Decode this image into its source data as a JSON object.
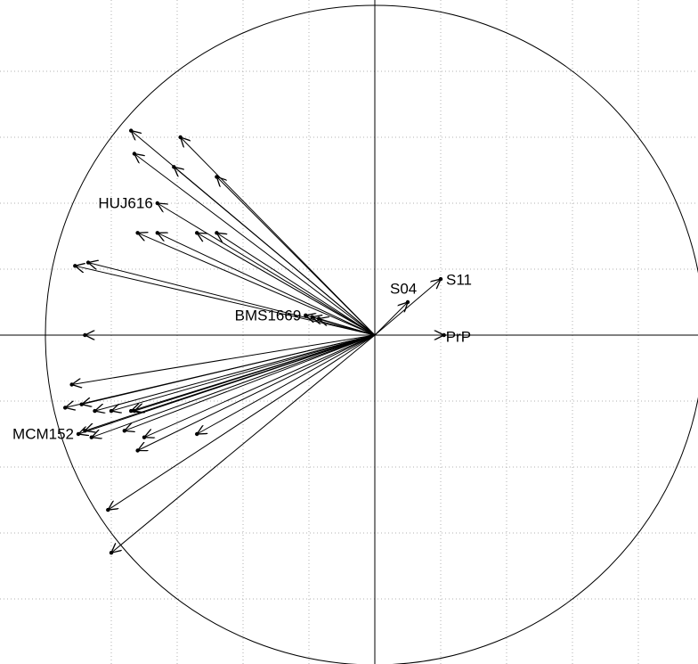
{
  "chart_data": {
    "type": "scatter",
    "subtype": "correlation-circle",
    "title": "",
    "xlabel": "",
    "ylabel": "",
    "xlim": [
      -1,
      1
    ],
    "ylim": [
      -1,
      1
    ],
    "grid": true,
    "grid_step": 0.2,
    "circle_radius": 1.0,
    "axes_through_origin": true,
    "colors": {
      "line": "#000000",
      "grid": "#b0b0b0",
      "background": "#ffffff"
    },
    "vectors": [
      {
        "x": -0.74,
        "y": 0.62
      },
      {
        "x": -0.59,
        "y": 0.6
      },
      {
        "x": -0.73,
        "y": 0.55
      },
      {
        "x": -0.61,
        "y": 0.51
      },
      {
        "x": -0.48,
        "y": 0.48
      },
      {
        "x": -0.66,
        "y": 0.4,
        "label": "HUJ616"
      },
      {
        "x": -0.72,
        "y": 0.31
      },
      {
        "x": -0.66,
        "y": 0.31
      },
      {
        "x": -0.54,
        "y": 0.31
      },
      {
        "x": -0.48,
        "y": 0.31
      },
      {
        "x": -0.91,
        "y": 0.21
      },
      {
        "x": -0.87,
        "y": 0.22
      },
      {
        "x": -0.21,
        "y": 0.06,
        "label": "BMS1669"
      },
      {
        "x": -0.19,
        "y": 0.055
      },
      {
        "x": -0.17,
        "y": 0.05
      },
      {
        "x": -0.88,
        "y": 0.0
      },
      {
        "x": -0.92,
        "y": -0.15
      },
      {
        "x": -0.94,
        "y": -0.22
      },
      {
        "x": -0.89,
        "y": -0.21
      },
      {
        "x": -0.85,
        "y": -0.23
      },
      {
        "x": -0.8,
        "y": -0.23
      },
      {
        "x": -0.73,
        "y": -0.23
      },
      {
        "x": -0.74,
        "y": -0.23
      },
      {
        "x": -0.88,
        "y": -0.29
      },
      {
        "x": -0.9,
        "y": -0.3,
        "label": "MCM152"
      },
      {
        "x": -0.86,
        "y": -0.31
      },
      {
        "x": -0.76,
        "y": -0.29
      },
      {
        "x": -0.7,
        "y": -0.31
      },
      {
        "x": -0.54,
        "y": -0.3
      },
      {
        "x": -0.72,
        "y": -0.35
      },
      {
        "x": -0.81,
        "y": -0.53
      },
      {
        "x": -0.8,
        "y": -0.66
      },
      {
        "x": 0.21,
        "y": 0.0,
        "label": "PrP"
      },
      {
        "x": 0.1,
        "y": 0.1,
        "label": "S04"
      },
      {
        "x": 0.2,
        "y": 0.17,
        "label": "S11"
      }
    ]
  }
}
